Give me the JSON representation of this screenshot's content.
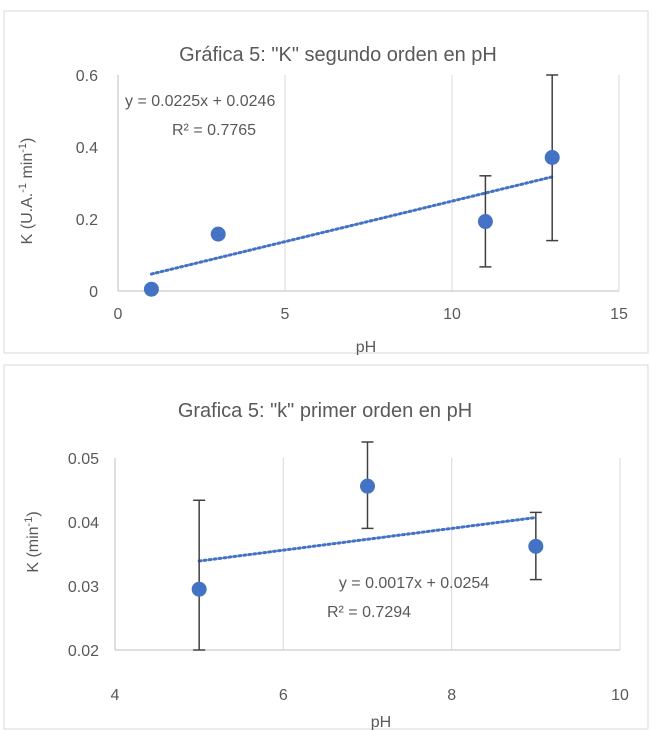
{
  "chart_data": [
    {
      "type": "scatter",
      "title": "Gráfica 5: \"K\" segundo orden en pH",
      "xlabel": "pH",
      "ylabel_main": "K (U.A.",
      "ylabel_sup1": "-1",
      "ylabel_mid": " min",
      "ylabel_sup2": "-1",
      "ylabel_end": ")",
      "xlim": [
        0,
        15
      ],
      "ylim": [
        0,
        0.6
      ],
      "x_ticks": [
        0,
        5,
        10,
        15
      ],
      "y_ticks": [
        0,
        0.2,
        0.4,
        0.6
      ],
      "x_tick_labels": [
        "0",
        "5",
        "10",
        "15"
      ],
      "y_tick_labels": [
        "0",
        "0.2",
        "0.4",
        "0.6"
      ],
      "grid": "vertical",
      "marker_color": "#4472C4",
      "error_color": "#404040",
      "points": [
        {
          "x": 1,
          "y": 0.005
        },
        {
          "x": 3,
          "y": 0.158
        },
        {
          "x": 11,
          "y": 0.193,
          "err_low": 0.067,
          "err_high": 0.32
        },
        {
          "x": 13,
          "y": 0.371,
          "err_low": 0.14,
          "err_high": 0.6
        }
      ],
      "trendline": {
        "slope": 0.0225,
        "intercept": 0.0246,
        "x_range": [
          1,
          13
        ],
        "style": "dotted"
      },
      "equation": "y = 0.0225x + 0.0246",
      "r2": "R² = 0.7765"
    },
    {
      "type": "scatter",
      "title": "Grafica 5: \"k\" primer orden en pH",
      "xlabel": "pH",
      "ylabel_main": "K (min",
      "ylabel_sup1": "-1",
      "ylabel_mid": "",
      "ylabel_sup2": "",
      "ylabel_end": ")",
      "xlim": [
        4,
        10
      ],
      "ylim": [
        0.02,
        0.05
      ],
      "x_ticks": [
        4,
        6,
        8,
        10
      ],
      "y_ticks": [
        0.02,
        0.03,
        0.04,
        0.05
      ],
      "x_tick_labels": [
        "4",
        "6",
        "8",
        "10"
      ],
      "y_tick_labels": [
        "0.02",
        "0.03",
        "0.04",
        "0.05"
      ],
      "grid": "vertical",
      "marker_color": "#4472C4",
      "error_color": "#404040",
      "points": [
        {
          "x": 5,
          "y": 0.0295,
          "err_low": 0.02,
          "err_high": 0.0434
        },
        {
          "x": 7,
          "y": 0.0456,
          "err_low": 0.039,
          "err_high": 0.0525
        },
        {
          "x": 9,
          "y": 0.0362,
          "err_low": 0.031,
          "err_high": 0.0415
        }
      ],
      "trendline": {
        "slope": 0.0017,
        "intercept": 0.0254,
        "x_range": [
          5,
          9
        ],
        "style": "dotted"
      },
      "equation": "y = 0.0017x + 0.0254",
      "r2": "R² = 0.7294"
    }
  ]
}
